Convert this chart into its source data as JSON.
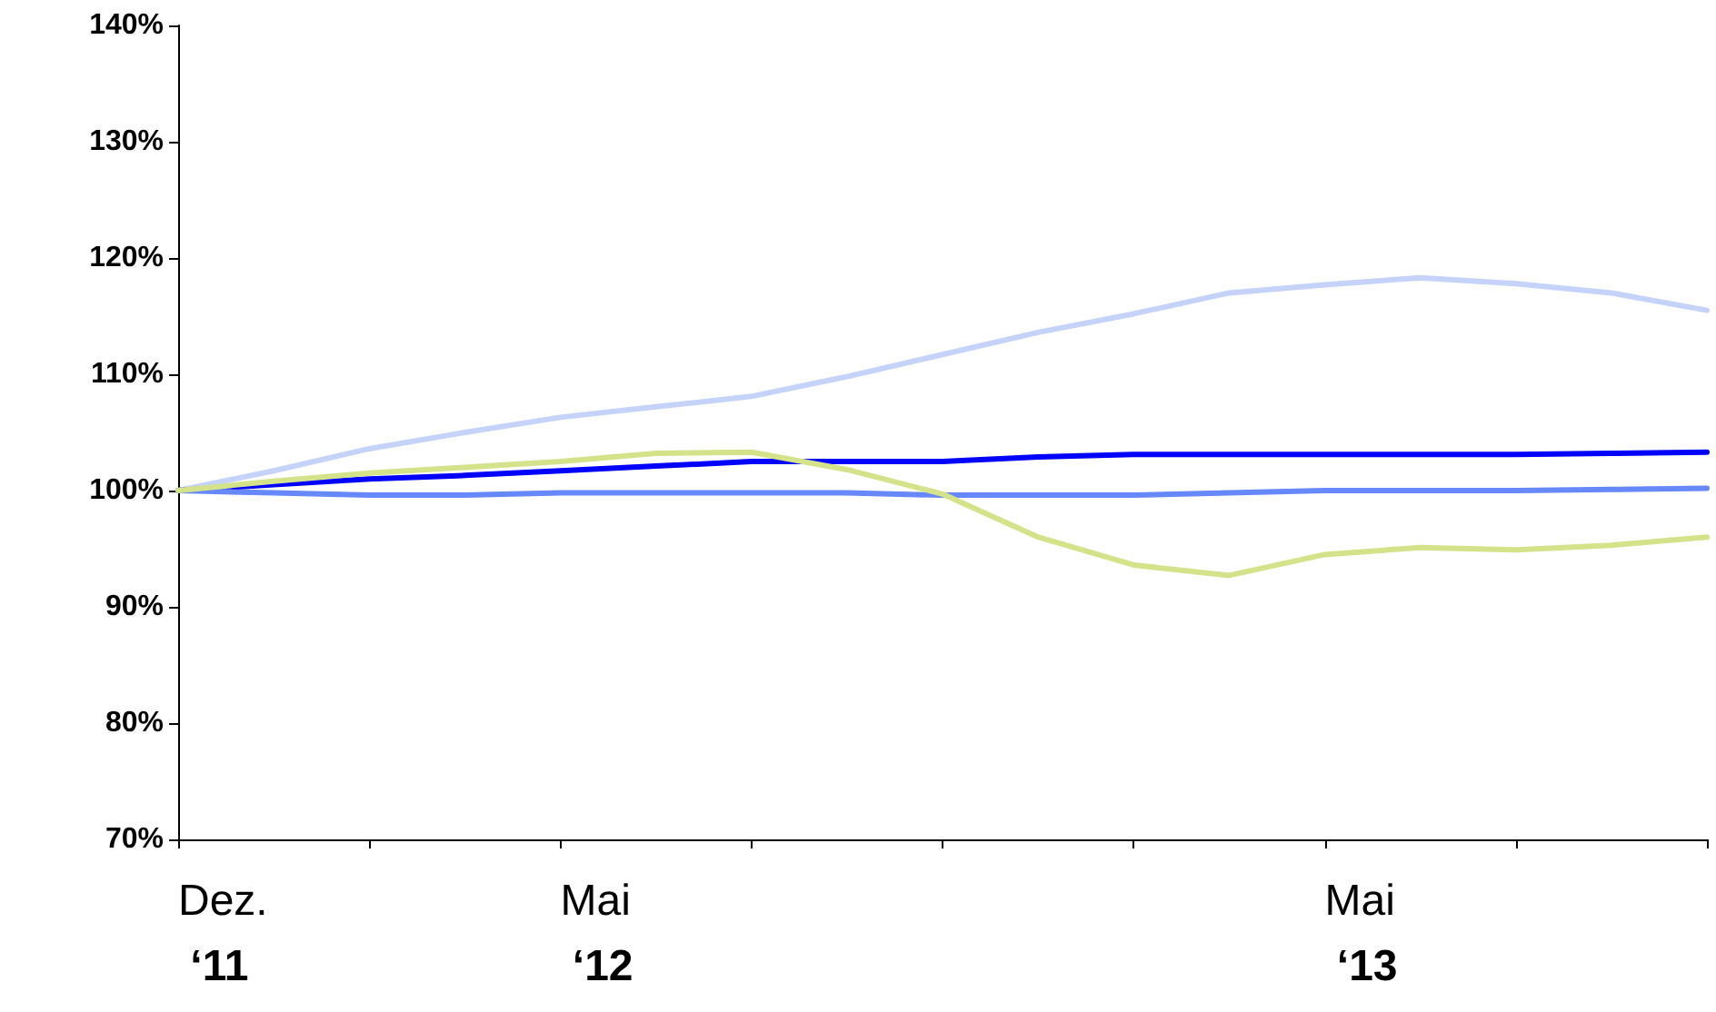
{
  "chart_data": {
    "type": "line",
    "categories": [
      "Dez.\n‘11",
      null,
      null,
      null,
      "Mai\n‘12",
      null,
      null,
      null,
      null,
      null,
      null,
      null,
      "Mai\n‘13",
      null,
      null,
      null,
      null
    ],
    "series": [
      {
        "color": "#c5d3fb",
        "values": [
          100,
          101.7,
          103.6,
          105,
          106.3,
          107.2,
          108.1,
          109.8,
          111.7,
          113.6,
          115.2,
          117,
          117.7,
          118.3,
          117.8,
          117,
          115.5
        ]
      },
      {
        "color": "#0000ff",
        "values": [
          100,
          100.5,
          101,
          101.3,
          101.7,
          102.1,
          102.5,
          102.5,
          102.5,
          102.9,
          103.1,
          103.1,
          103.1,
          103.1,
          103.1,
          103.2,
          103.3
        ]
      },
      {
        "color": "#6688fa",
        "values": [
          100,
          99.8,
          99.6,
          99.6,
          99.8,
          99.8,
          99.8,
          99.8,
          99.6,
          99.6,
          99.6,
          99.8,
          100,
          100,
          100,
          100.1,
          100.2
        ]
      },
      {
        "color": "#d4e28a",
        "values": [
          100,
          100.8,
          101.5,
          102,
          102.5,
          103.2,
          103.3,
          101.8,
          99.7,
          96,
          93.6,
          92.7,
          94.5,
          95.1,
          94.9,
          95.3,
          96
        ]
      }
    ],
    "ylim": [
      70,
      140
    ],
    "yticks": [
      {
        "value": 70,
        "label": "70%"
      },
      {
        "value": 80,
        "label": "80%"
      },
      {
        "value": 90,
        "label": "90%"
      },
      {
        "value": 100,
        "label": "100%"
      },
      {
        "value": 110,
        "label": "110%"
      },
      {
        "value": 120,
        "label": "120%"
      },
      {
        "value": 130,
        "label": "130%"
      },
      {
        "value": 140,
        "label": "140%"
      }
    ],
    "grid": false,
    "marker": "none",
    "line_style": "solid"
  }
}
